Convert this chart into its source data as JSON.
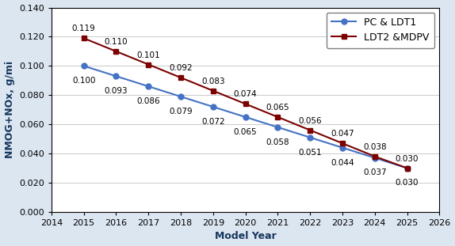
{
  "years": [
    2015,
    2016,
    2017,
    2018,
    2019,
    2020,
    2021,
    2022,
    2023,
    2024,
    2025
  ],
  "pc_ldt1": [
    0.1,
    0.093,
    0.086,
    0.079,
    0.072,
    0.065,
    0.058,
    0.051,
    0.044,
    0.037,
    0.03
  ],
  "ldt2_mdpv": [
    0.119,
    0.11,
    0.101,
    0.092,
    0.083,
    0.074,
    0.065,
    0.056,
    0.047,
    0.038,
    0.03
  ],
  "pc_ldt1_labels": [
    "0.100",
    "0.093",
    "0.086",
    "0.079",
    "0.072",
    "0.065",
    "0.058",
    "0.051",
    "0.044",
    "0.037",
    "0.030"
  ],
  "ldt2_mdpv_labels": [
    "0.119",
    "0.110",
    "0.101",
    "0.092",
    "0.083",
    "0.074",
    "0.065",
    "0.056",
    "0.047",
    "0.038",
    "0.030"
  ],
  "pc_ldt1_color": "#4472C4",
  "ldt2_mdpv_color": "#7B0000",
  "pc_ldt1_label": "PC & LDT1",
  "ldt2_mdpv_label": "LDT2 &MDPV",
  "xlabel": "Model Year",
  "ylabel": "NMOG+NOx, g/mi",
  "xlim": [
    2014,
    2026
  ],
  "ylim": [
    0.0,
    0.14
  ],
  "yticks": [
    0.0,
    0.02,
    0.04,
    0.06,
    0.08,
    0.1,
    0.12,
    0.14
  ],
  "xticks": [
    2014,
    2015,
    2016,
    2017,
    2018,
    2019,
    2020,
    2021,
    2022,
    2023,
    2024,
    2025,
    2026
  ],
  "figure_bg_color": "#DCE6F1",
  "plot_bg_color": "#FFFFFF",
  "grid_color": "#C0C0C0",
  "axis_label_color": "#17375E",
  "tick_label_color": "#000000",
  "spine_color": "#000000",
  "annotation_color": "#000000",
  "label_fontsize": 9,
  "tick_fontsize": 8,
  "annotation_fontsize": 7.5,
  "legend_fontsize": 9,
  "offsets_ldt2_x": [
    0,
    0,
    0,
    0,
    0,
    0,
    0,
    0,
    0,
    0,
    0
  ],
  "offsets_ldt2_y": [
    5,
    5,
    5,
    5,
    5,
    5,
    5,
    5,
    5,
    5,
    5
  ],
  "offsets_pc_x": [
    0,
    0,
    0,
    0,
    0,
    0,
    0,
    0,
    0,
    0,
    0
  ],
  "offsets_pc_y": [
    -10,
    -10,
    -10,
    -10,
    -10,
    -10,
    -10,
    -10,
    -10,
    -10,
    -10
  ]
}
